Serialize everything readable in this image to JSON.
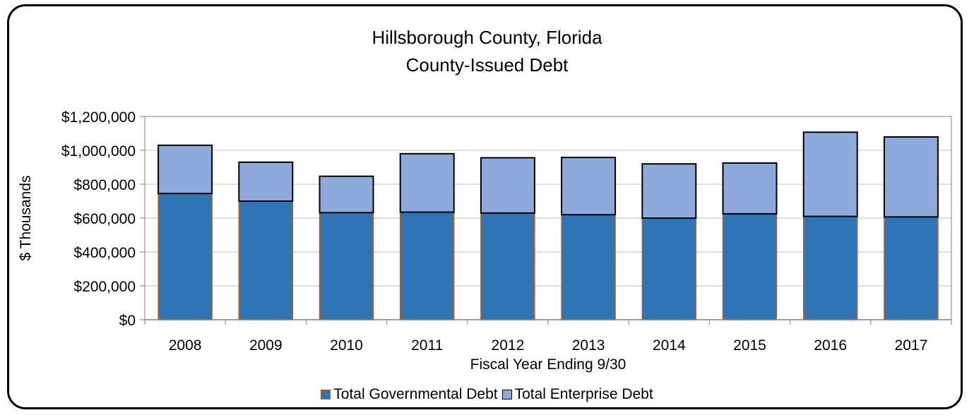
{
  "chart_data": {
    "type": "bar",
    "stacked": true,
    "title": "Hillsborough County, Florida",
    "subtitle": "County-Issued Debt",
    "xlabel": "Fiscal Year Ending 9/30",
    "ylabel": "$ Thousands",
    "ylim": [
      0,
      1200000
    ],
    "yticks": [
      0,
      200000,
      400000,
      600000,
      800000,
      1000000,
      1200000
    ],
    "ytick_labels": [
      "$0",
      "$200,000",
      "$400,000",
      "$600,000",
      "$800,000",
      "$1,000,000",
      "$1,200,000"
    ],
    "categories": [
      "2008",
      "2009",
      "2010",
      "2011",
      "2012",
      "2013",
      "2014",
      "2015",
      "2016",
      "2017"
    ],
    "series": [
      {
        "name": "Total Governmental Debt",
        "color": "#2E75B6",
        "edge_color": "#C55A11",
        "values": [
          745000,
          700000,
          632000,
          635000,
          630000,
          620000,
          600000,
          625000,
          610000,
          607000
        ]
      },
      {
        "name": "Total Enterprise Debt",
        "color": "#8EA9DB",
        "edge_color": "#000000",
        "values": [
          285000,
          230000,
          215000,
          345000,
          326000,
          338000,
          320000,
          300000,
          497000,
          472000
        ]
      }
    ],
    "grid": true,
    "legend_position": "bottom-center"
  }
}
